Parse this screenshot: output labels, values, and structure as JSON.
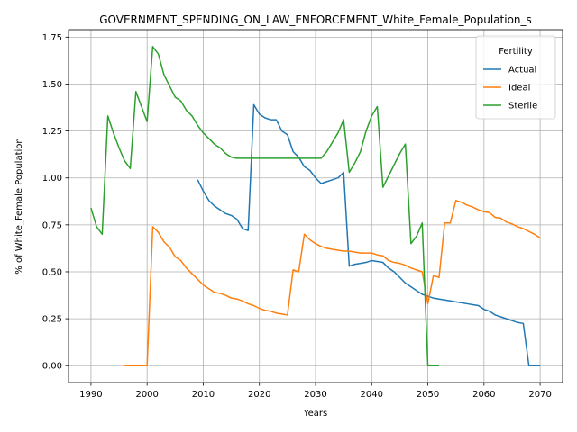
{
  "chart_data": {
    "type": "line",
    "title": "GOVERNMENT_SPENDING_ON_LAW_ENFORCEMENT_White_Female_Population_s",
    "xlabel": "Years",
    "ylabel": "% of White_Female Population",
    "xlim": [
      1986.0,
      2074.0
    ],
    "ylim": [
      -0.09,
      1.79
    ],
    "xticks": [
      1990,
      2000,
      2010,
      2020,
      2030,
      2040,
      2050,
      2060,
      2070
    ],
    "yticks": [
      0.0,
      0.25,
      0.5,
      0.75,
      1.0,
      1.25,
      1.5,
      1.75
    ],
    "ytick_labels": [
      "0.00",
      "0.25",
      "0.50",
      "0.75",
      "1.00",
      "1.25",
      "1.50",
      "1.75"
    ],
    "grid": true,
    "legend": {
      "title": "Fertility",
      "position": "top-right"
    },
    "series": [
      {
        "name": "Actual",
        "color": "#1f77b4",
        "x": [
          2009,
          2010,
          2011,
          2012,
          2013,
          2014,
          2015,
          2016,
          2017,
          2018,
          2019,
          2020,
          2021,
          2022,
          2023,
          2024,
          2025,
          2026,
          2027,
          2028,
          2029,
          2030,
          2031,
          2032,
          2033,
          2034,
          2035,
          2036,
          2037,
          2038,
          2039,
          2040,
          2041,
          2042,
          2043,
          2044,
          2045,
          2046,
          2047,
          2048,
          2049,
          2050,
          2051,
          2052,
          2053,
          2054,
          2055,
          2056,
          2057,
          2058,
          2059,
          2060,
          2061,
          2062,
          2063,
          2064,
          2065,
          2066,
          2067,
          2068,
          2069,
          2070
        ],
        "y": [
          0.99,
          0.93,
          0.88,
          0.85,
          0.83,
          0.81,
          0.8,
          0.78,
          0.73,
          0.72,
          1.39,
          1.34,
          1.32,
          1.31,
          1.31,
          1.25,
          1.23,
          1.14,
          1.11,
          1.06,
          1.04,
          1.0,
          0.97,
          0.98,
          0.99,
          1.0,
          1.03,
          0.53,
          0.54,
          0.545,
          0.55,
          0.56,
          0.555,
          0.55,
          0.52,
          0.5,
          0.47,
          0.44,
          0.42,
          0.4,
          0.38,
          0.37,
          0.36,
          0.355,
          0.35,
          0.345,
          0.34,
          0.335,
          0.33,
          0.325,
          0.32,
          0.3,
          0.29,
          0.27,
          0.26,
          0.25,
          0.24,
          0.23,
          0.225,
          0.0,
          0.0,
          0.0
        ]
      },
      {
        "name": "Ideal",
        "color": "#ff7f0e",
        "x": [
          1996,
          1997,
          1998,
          1999,
          2000,
          2001,
          2002,
          2003,
          2004,
          2005,
          2006,
          2007,
          2008,
          2009,
          2010,
          2011,
          2012,
          2013,
          2014,
          2015,
          2016,
          2017,
          2018,
          2019,
          2020,
          2021,
          2022,
          2023,
          2024,
          2025,
          2026,
          2027,
          2028,
          2029,
          2030,
          2031,
          2032,
          2033,
          2034,
          2035,
          2036,
          2037,
          2038,
          2039,
          2040,
          2041,
          2042,
          2043,
          2044,
          2045,
          2046,
          2047,
          2048,
          2049,
          2050,
          2051,
          2052,
          2053,
          2054,
          2055,
          2056,
          2057,
          2058,
          2059,
          2060,
          2061,
          2062,
          2063,
          2064,
          2065,
          2066,
          2067,
          2068,
          2069,
          2070
        ],
        "y": [
          0.0,
          0.0,
          0.0,
          0.0,
          0.0,
          0.74,
          0.71,
          0.66,
          0.63,
          0.58,
          0.56,
          0.52,
          0.49,
          0.46,
          0.43,
          0.41,
          0.39,
          0.385,
          0.375,
          0.36,
          0.355,
          0.345,
          0.33,
          0.32,
          0.305,
          0.295,
          0.29,
          0.28,
          0.275,
          0.27,
          0.51,
          0.5,
          0.7,
          0.67,
          0.65,
          0.635,
          0.625,
          0.62,
          0.615,
          0.61,
          0.61,
          0.605,
          0.6,
          0.6,
          0.6,
          0.59,
          0.585,
          0.56,
          0.55,
          0.545,
          0.535,
          0.52,
          0.51,
          0.5,
          0.33,
          0.48,
          0.47,
          0.76,
          0.76,
          0.88,
          0.87,
          0.855,
          0.845,
          0.83,
          0.82,
          0.815,
          0.79,
          0.785,
          0.765,
          0.755,
          0.74,
          0.73,
          0.715,
          0.7,
          0.68
        ]
      },
      {
        "name": "Sterile",
        "color": "#2ca02c",
        "x": [
          1990,
          1991,
          1992,
          1993,
          1994,
          1995,
          1996,
          1997,
          1998,
          1999,
          2000,
          2001,
          2002,
          2003,
          2004,
          2005,
          2006,
          2007,
          2008,
          2009,
          2010,
          2011,
          2012,
          2013,
          2014,
          2015,
          2016,
          2017,
          2018,
          2019,
          2020,
          2021,
          2022,
          2023,
          2024,
          2025,
          2026,
          2027,
          2028,
          2029,
          2030,
          2031,
          2032,
          2033,
          2034,
          2035,
          2036,
          2037,
          2038,
          2039,
          2040,
          2041,
          2042,
          2043,
          2044,
          2045,
          2046,
          2047,
          2048,
          2049,
          2050,
          2051,
          2052
        ],
        "y": [
          0.84,
          0.74,
          0.7,
          1.33,
          1.24,
          1.16,
          1.09,
          1.05,
          1.46,
          1.38,
          1.3,
          1.7,
          1.66,
          1.55,
          1.49,
          1.43,
          1.41,
          1.36,
          1.33,
          1.28,
          1.24,
          1.21,
          1.18,
          1.16,
          1.13,
          1.11,
          1.105,
          1.105,
          1.105,
          1.105,
          1.105,
          1.105,
          1.105,
          1.105,
          1.105,
          1.105,
          1.105,
          1.105,
          1.105,
          1.105,
          1.105,
          1.105,
          1.14,
          1.19,
          1.24,
          1.31,
          1.03,
          1.08,
          1.14,
          1.25,
          1.33,
          1.38,
          0.95,
          1.01,
          1.07,
          1.13,
          1.18,
          0.65,
          0.69,
          0.76,
          0.0,
          0.0,
          0.0
        ]
      }
    ]
  }
}
